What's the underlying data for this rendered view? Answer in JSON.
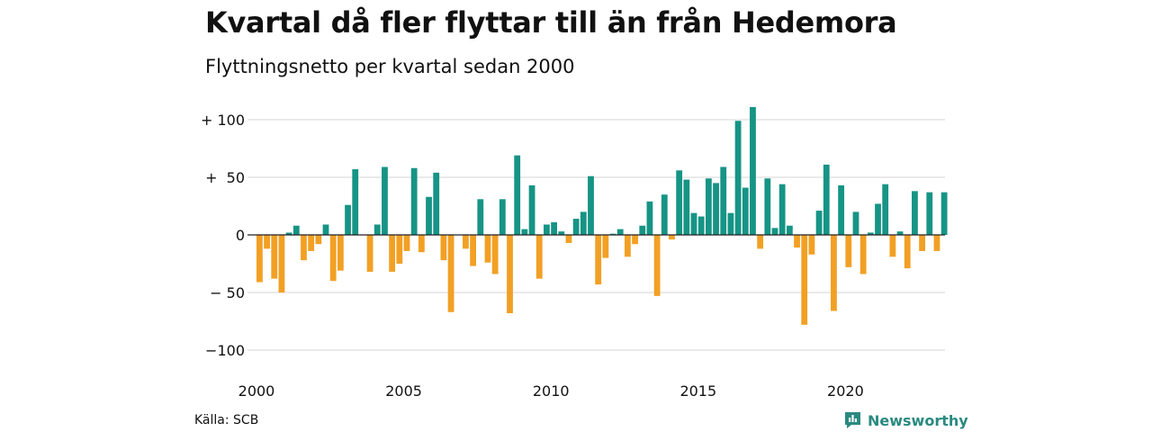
{
  "title": "Kvartal då fler flyttar till än från Hedemora",
  "subtitle": "Flyttningsnetto per kvartal sedan 2000",
  "source": "Källa: SCB",
  "brand": "Newsworthy",
  "colors": {
    "positive": "#169485",
    "negative": "#f2a024",
    "grid": "#e3e3e3",
    "brand": "#2a8a80"
  },
  "chart_data": {
    "type": "bar",
    "xlabel": "",
    "ylabel": "",
    "ylim": [
      -105,
      113
    ],
    "yticks": [
      100,
      50,
      0,
      -50,
      -100
    ],
    "ytick_labels": [
      "+ 100",
      "+  50",
      "0",
      "− 50",
      "−100"
    ],
    "xticks": [
      {
        "label": "2000",
        "index": 0
      },
      {
        "label": "2005",
        "index": 20
      },
      {
        "label": "2010",
        "index": 40
      },
      {
        "label": "2015",
        "index": 60
      },
      {
        "label": "2020",
        "index": 80
      }
    ],
    "first_period": "2000 kv1",
    "grid": true,
    "values": [
      -41,
      -12,
      -38,
      -50,
      2,
      8,
      -22,
      -14,
      -8,
      9,
      -40,
      -31,
      26,
      57,
      0,
      -32,
      9,
      59,
      -32,
      -25,
      -14,
      58,
      -15,
      33,
      54,
      -22,
      -67,
      0,
      -12,
      -27,
      31,
      -24,
      -34,
      31,
      -68,
      69,
      5,
      43,
      -38,
      9,
      11,
      3,
      -7,
      14,
      20,
      51,
      -43,
      -20,
      1,
      5,
      -19,
      -8,
      8,
      29,
      -53,
      35,
      -4,
      56,
      48,
      19,
      16,
      49,
      45,
      59,
      19,
      99,
      41,
      111,
      -12,
      49,
      6,
      44,
      8,
      -11,
      -78,
      -17,
      21,
      61,
      -66,
      43,
      -28,
      20,
      -34,
      2,
      27,
      44,
      -19,
      3,
      -29,
      38,
      -14,
      37,
      -14,
      37
    ]
  }
}
